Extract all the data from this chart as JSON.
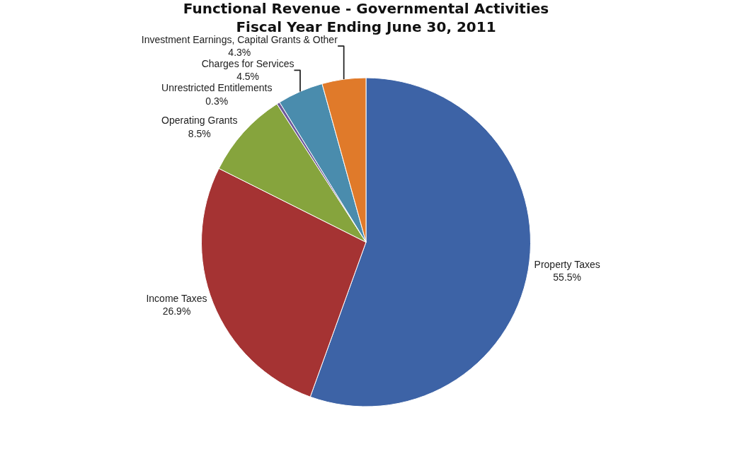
{
  "chart_data": {
    "type": "pie",
    "title": "Functional Revenue - Governmental Activities\nFiscal Year Ending June 30, 2011",
    "categories": [
      "Property Taxes",
      "Income Taxes",
      "Operating Grants",
      "Unrestricted Entitlements",
      "Charges for Services",
      "Investment Earnings, Capital Grants & Other"
    ],
    "values": [
      55.5,
      26.9,
      8.5,
      0.3,
      4.5,
      4.3
    ],
    "value_labels": [
      "55.5%",
      "26.9%",
      "8.5%",
      "0.3%",
      "4.5%",
      "4.3%"
    ],
    "colors": [
      "#3d63a6",
      "#a53333",
      "#86a43d",
      "#6f5a9a",
      "#4a8cad",
      "#e07a2a"
    ],
    "legend": false
  }
}
